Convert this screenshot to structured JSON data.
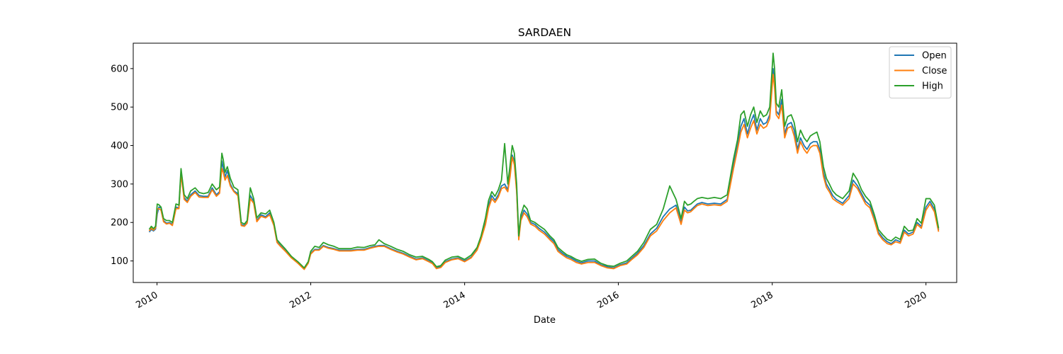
{
  "chart_data": {
    "type": "line",
    "title": "SARDAEN",
    "xlabel": "Date",
    "ylabel": "",
    "xlim": [
      "2009-09-10",
      "2020-05-26"
    ],
    "ylim": [
      44,
      666
    ],
    "x_ticks": [
      "2010-01-01",
      "2012-01-01",
      "2014-01-01",
      "2016-01-01",
      "2018-01-01",
      "2020-01-01"
    ],
    "x_tick_labels": [
      "2010",
      "2012",
      "2014",
      "2016",
      "2018",
      "2020"
    ],
    "y_ticks": [
      100,
      200,
      300,
      400,
      500,
      600
    ],
    "y_tick_labels": [
      "100",
      "200",
      "300",
      "400",
      "500",
      "600"
    ],
    "grid": false,
    "legend_position": "top-right",
    "x": [
      "2009-11-25",
      "2009-12-05",
      "2009-12-15",
      "2009-12-25",
      "2010-01-02",
      "2010-01-10",
      "2010-01-20",
      "2010-02-01",
      "2010-02-15",
      "2010-03-01",
      "2010-03-15",
      "2010-04-01",
      "2010-04-15",
      "2010-04-25",
      "2010-05-10",
      "2010-05-25",
      "2010-06-10",
      "2010-07-01",
      "2010-07-20",
      "2010-08-10",
      "2010-09-01",
      "2010-09-20",
      "2010-10-10",
      "2010-10-25",
      "2010-11-05",
      "2010-11-12",
      "2010-11-20",
      "2010-12-01",
      "2010-12-15",
      "2011-01-01",
      "2011-01-20",
      "2011-02-05",
      "2011-02-20",
      "2011-03-05",
      "2011-03-20",
      "2011-04-05",
      "2011-04-20",
      "2011-05-10",
      "2011-06-01",
      "2011-06-20",
      "2011-07-10",
      "2011-07-25",
      "2011-08-10",
      "2011-09-01",
      "2011-10-01",
      "2011-11-01",
      "2011-12-01",
      "2011-12-20",
      "2012-01-01",
      "2012-01-20",
      "2012-02-10",
      "2012-03-01",
      "2012-03-25",
      "2012-04-20",
      "2012-05-15",
      "2012-06-10",
      "2012-07-10",
      "2012-08-10",
      "2012-09-10",
      "2012-10-10",
      "2012-11-01",
      "2012-11-20",
      "2012-12-15",
      "2013-01-15",
      "2013-02-15",
      "2013-03-15",
      "2013-04-15",
      "2013-05-15",
      "2013-06-15",
      "2013-07-15",
      "2013-08-01",
      "2013-08-20",
      "2013-09-10",
      "2013-10-01",
      "2013-11-01",
      "2013-12-01",
      "2014-01-01",
      "2014-02-01",
      "2014-03-01",
      "2014-03-20",
      "2014-04-10",
      "2014-04-25",
      "2014-05-10",
      "2014-05-25",
      "2014-06-10",
      "2014-06-25",
      "2014-07-10",
      "2014-07-25",
      "2014-08-05",
      "2014-08-15",
      "2014-08-25",
      "2014-09-05",
      "2014-09-15",
      "2014-09-25",
      "2014-10-10",
      "2014-10-25",
      "2014-11-10",
      "2014-12-01",
      "2014-12-20",
      "2015-01-15",
      "2015-02-10",
      "2015-03-01",
      "2015-03-20",
      "2015-04-10",
      "2015-05-01",
      "2015-05-20",
      "2015-06-15",
      "2015-07-10",
      "2015-08-10",
      "2015-09-10",
      "2015-10-10",
      "2015-11-10",
      "2015-12-10",
      "2016-01-10",
      "2016-02-10",
      "2016-03-01",
      "2016-04-01",
      "2016-05-01",
      "2016-06-01",
      "2016-07-01",
      "2016-08-01",
      "2016-09-01",
      "2016-10-01",
      "2016-10-25",
      "2016-11-10",
      "2016-11-25",
      "2016-12-10",
      "2016-12-25",
      "2017-01-10",
      "2017-02-01",
      "2017-03-01",
      "2017-04-01",
      "2017-05-01",
      "2017-06-01",
      "2017-07-01",
      "2017-07-20",
      "2017-08-05",
      "2017-08-20",
      "2017-09-05",
      "2017-09-20",
      "2017-10-05",
      "2017-10-20",
      "2017-11-05",
      "2017-11-20",
      "2017-12-05",
      "2017-12-20",
      "2018-01-05",
      "2018-01-12",
      "2018-01-20",
      "2018-02-01",
      "2018-02-15",
      "2018-03-01",
      "2018-03-15",
      "2018-04-01",
      "2018-04-15",
      "2018-05-01",
      "2018-05-15",
      "2018-06-01",
      "2018-06-15",
      "2018-07-01",
      "2018-07-15",
      "2018-08-01",
      "2018-08-15",
      "2018-09-01",
      "2018-09-15",
      "2018-10-01",
      "2018-10-15",
      "2018-11-01",
      "2018-12-01",
      "2019-01-01",
      "2019-01-20",
      "2019-02-10",
      "2019-03-01",
      "2019-03-20",
      "2019-04-10",
      "2019-05-01",
      "2019-05-20",
      "2019-06-10",
      "2019-07-01",
      "2019-07-20",
      "2019-08-10",
      "2019-09-01",
      "2019-09-20",
      "2019-10-10",
      "2019-11-01",
      "2019-11-20",
      "2019-12-10",
      "2020-01-01",
      "2020-01-20",
      "2020-02-10",
      "2020-03-01"
    ],
    "series": [
      {
        "name": "Open",
        "color": "#1f77b4",
        "values": [
          175,
          182,
          178,
          183,
          222,
          240,
          238,
          205,
          198,
          200,
          195,
          240,
          238,
          330,
          265,
          255,
          272,
          282,
          270,
          268,
          268,
          290,
          272,
          280,
          360,
          340,
          318,
          335,
          300,
          282,
          275,
          195,
          192,
          200,
          270,
          255,
          205,
          220,
          215,
          225,
          195,
          150,
          140,
          128,
          110,
          95,
          80,
          95,
          120,
          130,
          130,
          140,
          135,
          132,
          128,
          128,
          128,
          130,
          130,
          135,
          138,
          140,
          140,
          132,
          125,
          120,
          112,
          105,
          108,
          100,
          95,
          82,
          85,
          98,
          105,
          108,
          100,
          110,
          130,
          160,
          200,
          245,
          270,
          258,
          272,
          295,
          300,
          285,
          330,
          375,
          360,
          285,
          160,
          210,
          232,
          222,
          200,
          195,
          185,
          175,
          160,
          150,
          130,
          120,
          112,
          108,
          100,
          95,
          100,
          100,
          90,
          85,
          82,
          90,
          95,
          105,
          120,
          140,
          170,
          185,
          215,
          235,
          245,
          200,
          240,
          230,
          232,
          240,
          248,
          252,
          248,
          250,
          248,
          260,
          350,
          400,
          450,
          470,
          430,
          460,
          480,
          440,
          470,
          455,
          460,
          480,
          600,
          560,
          490,
          480,
          520,
          430,
          455,
          460,
          440,
          390,
          420,
          400,
          390,
          405,
          410,
          410,
          390,
          330,
          300,
          285,
          270,
          260,
          250,
          270,
          310,
          295,
          275,
          255,
          245,
          210,
          175,
          160,
          150,
          145,
          155,
          150,
          180,
          170,
          175,
          200,
          190,
          240,
          255,
          235,
          180
        ]
      },
      {
        "name": "Close",
        "color": "#ff7f0e",
        "values": [
          178,
          185,
          180,
          186,
          235,
          236,
          232,
          202,
          196,
          198,
          192,
          236,
          236,
          325,
          260,
          252,
          268,
          278,
          266,
          265,
          265,
          285,
          268,
          276,
          340,
          330,
          310,
          322,
          295,
          280,
          270,
          192,
          190,
          198,
          262,
          250,
          202,
          216,
          212,
          220,
          192,
          148,
          138,
          126,
          108,
          94,
          78,
          94,
          118,
          128,
          128,
          138,
          133,
          130,
          126,
          126,
          126,
          128,
          128,
          133,
          136,
          138,
          138,
          130,
          123,
          118,
          110,
          103,
          106,
          98,
          93,
          80,
          83,
          96,
          103,
          106,
          98,
          108,
          128,
          156,
          195,
          238,
          262,
          252,
          266,
          288,
          292,
          280,
          320,
          370,
          350,
          280,
          155,
          205,
          225,
          215,
          196,
          190,
          180,
          170,
          155,
          145,
          125,
          116,
          108,
          104,
          96,
          92,
          96,
          96,
          88,
          82,
          80,
          88,
          92,
          102,
          116,
          135,
          165,
          178,
          205,
          225,
          238,
          195,
          232,
          225,
          228,
          236,
          244,
          248,
          244,
          246,
          244,
          255,
          340,
          390,
          435,
          455,
          420,
          445,
          465,
          430,
          455,
          445,
          450,
          470,
          585,
          550,
          480,
          470,
          505,
          420,
          445,
          450,
          425,
          380,
          410,
          390,
          380,
          395,
          400,
          400,
          380,
          320,
          292,
          278,
          262,
          255,
          245,
          262,
          300,
          288,
          268,
          248,
          238,
          205,
          170,
          155,
          145,
          142,
          150,
          146,
          175,
          165,
          170,
          195,
          185,
          232,
          248,
          228,
          176
        ]
      },
      {
        "name": "High",
        "color": "#2ca02c",
        "values": [
          182,
          190,
          184,
          190,
          248,
          246,
          240,
          210,
          205,
          205,
          200,
          248,
          245,
          340,
          272,
          262,
          282,
          290,
          278,
          275,
          278,
          300,
          285,
          292,
          380,
          362,
          330,
          345,
          315,
          292,
          285,
          200,
          196,
          205,
          290,
          262,
          212,
          225,
          222,
          232,
          200,
          155,
          145,
          132,
          112,
          98,
          82,
          98,
          125,
          138,
          135,
          148,
          142,
          138,
          132,
          132,
          132,
          136,
          135,
          140,
          142,
          155,
          145,
          138,
          130,
          125,
          116,
          110,
          112,
          104,
          98,
          85,
          88,
          102,
          110,
          112,
          104,
          115,
          135,
          165,
          212,
          258,
          280,
          268,
          285,
          310,
          405,
          300,
          350,
          400,
          380,
          300,
          165,
          220,
          245,
          235,
          205,
          200,
          192,
          182,
          165,
          155,
          135,
          125,
          116,
          112,
          104,
          99,
          104,
          105,
          94,
          88,
          86,
          94,
          100,
          110,
          125,
          148,
          182,
          195,
          235,
          295,
          260,
          210,
          255,
          245,
          248,
          255,
          262,
          265,
          262,
          265,
          262,
          272,
          365,
          415,
          480,
          490,
          450,
          480,
          500,
          460,
          490,
          475,
          480,
          500,
          640,
          600,
          510,
          500,
          545,
          450,
          475,
          480,
          460,
          410,
          440,
          420,
          410,
          425,
          430,
          435,
          410,
          345,
          315,
          298,
          282,
          272,
          262,
          282,
          328,
          310,
          285,
          268,
          255,
          220,
          182,
          168,
          156,
          152,
          162,
          156,
          190,
          178,
          180,
          210,
          198,
          262,
          262,
          245,
          185
        ]
      }
    ]
  }
}
